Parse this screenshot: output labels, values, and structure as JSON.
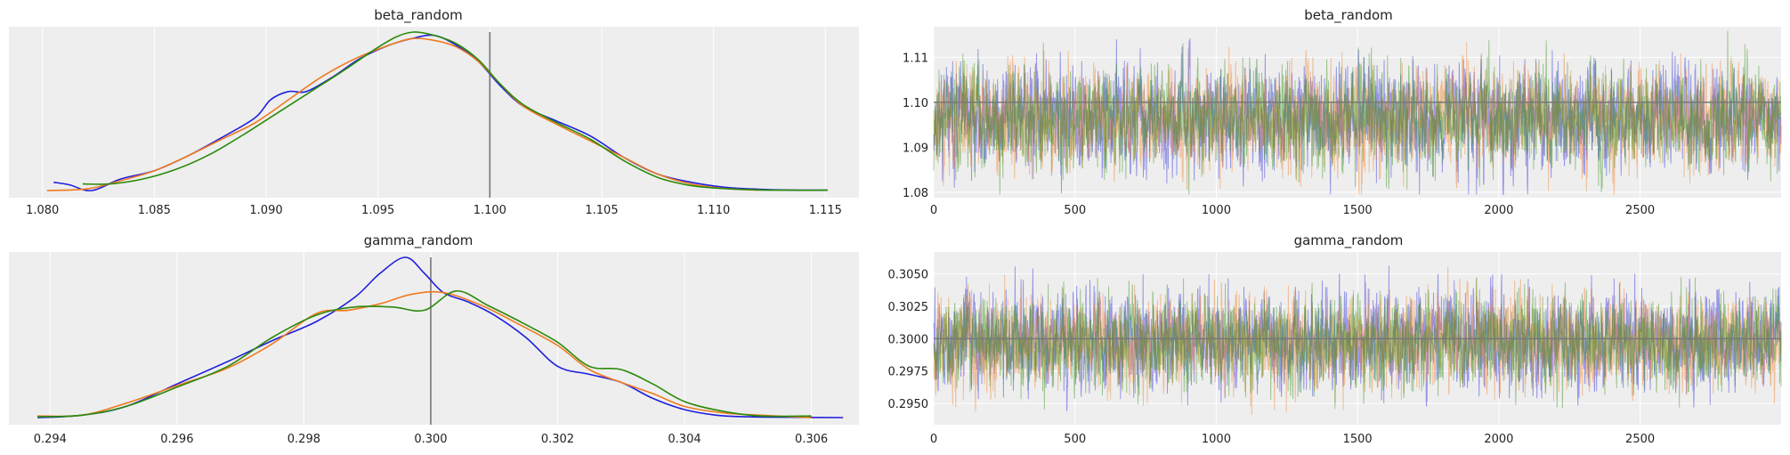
{
  "colors": {
    "panel_bg": "#eeeeee",
    "grid": "#ffffff",
    "reference_line": "#777777",
    "chain_1": "#1f1fdc",
    "chain_2": "#f07a20",
    "chain_3": "#2a8a0a"
  },
  "chart_data": [
    {
      "type": "line",
      "kind": "density",
      "title": "beta_random",
      "xlim": [
        1.0785,
        1.1165
      ],
      "xticks": [
        1.08,
        1.085,
        1.09,
        1.095,
        1.1,
        1.105,
        1.11,
        1.115
      ],
      "xtick_labels": [
        "1.080",
        "1.085",
        "1.090",
        "1.095",
        "1.100",
        "1.105",
        "1.110",
        "1.115"
      ],
      "reference_x": 1.1,
      "grid": "vertical",
      "series": [
        {
          "color": "#1f1fdc",
          "x": [
            1.0805,
            1.0812,
            1.0822,
            1.0835,
            1.085,
            1.0865,
            1.088,
            1.0895,
            1.0902,
            1.091,
            1.0918,
            1.093,
            1.0942,
            1.0955,
            1.0965,
            1.0975,
            1.0985,
            1.0995,
            1.1005,
            1.1015,
            1.103,
            1.1045,
            1.106,
            1.1075,
            1.109,
            1.1105,
            1.112,
            1.1135,
            1.1151
          ],
          "y": [
            0.05,
            0.035,
            0.0,
            0.07,
            0.12,
            0.21,
            0.32,
            0.44,
            0.55,
            0.6,
            0.6,
            0.69,
            0.8,
            0.88,
            0.92,
            0.94,
            0.88,
            0.78,
            0.63,
            0.51,
            0.42,
            0.33,
            0.2,
            0.1,
            0.05,
            0.02,
            0.008,
            0.003,
            0.002
          ]
        },
        {
          "color": "#f07a20",
          "x": [
            1.0802,
            1.082,
            1.0835,
            1.085,
            1.0865,
            1.088,
            1.0895,
            1.091,
            1.0925,
            1.094,
            1.0955,
            1.0965,
            1.0975,
            1.0985,
            1.0995,
            1.1005,
            1.1015,
            1.103,
            1.1045,
            1.106,
            1.1075,
            1.109,
            1.1105,
            1.112
          ],
          "y": [
            0.0,
            0.01,
            0.06,
            0.12,
            0.21,
            0.31,
            0.41,
            0.55,
            0.69,
            0.8,
            0.88,
            0.92,
            0.91,
            0.87,
            0.78,
            0.64,
            0.51,
            0.4,
            0.3,
            0.2,
            0.1,
            0.04,
            0.013,
            0.002
          ]
        },
        {
          "color": "#2a8a0a",
          "x": [
            1.0818,
            1.083,
            1.0845,
            1.086,
            1.0875,
            1.089,
            1.0905,
            1.092,
            1.0935,
            1.0948,
            1.0958,
            1.0966,
            1.0975,
            1.0985,
            1.0995,
            1.1005,
            1.1015,
            1.103,
            1.1045,
            1.106,
            1.1075,
            1.109,
            1.1105,
            1.112,
            1.1135,
            1.1151
          ],
          "y": [
            0.04,
            0.04,
            0.07,
            0.13,
            0.22,
            0.34,
            0.47,
            0.6,
            0.73,
            0.85,
            0.93,
            0.96,
            0.94,
            0.89,
            0.79,
            0.64,
            0.52,
            0.41,
            0.31,
            0.18,
            0.08,
            0.03,
            0.012,
            0.004,
            0.002,
            0.002
          ]
        }
      ]
    },
    {
      "type": "line",
      "kind": "trace",
      "title": "beta_random",
      "xlim": [
        0,
        2999
      ],
      "ylim": [
        1.0788,
        1.1168
      ],
      "xticks": [
        0,
        500,
        1000,
        1500,
        2000,
        2500
      ],
      "xtick_labels": [
        "0",
        "500",
        "1000",
        "1500",
        "2000",
        "2500"
      ],
      "yticks": [
        1.08,
        1.09,
        1.1,
        1.11
      ],
      "ytick_labels": [
        "1.08",
        "1.09",
        "1.10",
        "1.11"
      ],
      "reference_y": 1.1,
      "grid": "both",
      "n_draws": 3000,
      "series": [
        {
          "color": "#1f1fdc",
          "mean": 1.0965,
          "sd": 0.0055,
          "seed": 11
        },
        {
          "color": "#f07a20",
          "mean": 1.0965,
          "sd": 0.0055,
          "seed": 23
        },
        {
          "color": "#2a8a0a",
          "mean": 1.0965,
          "sd": 0.0055,
          "seed": 37
        }
      ]
    },
    {
      "type": "line",
      "kind": "density",
      "title": "gamma_random",
      "xlim": [
        0.29335,
        0.30675
      ],
      "xticks": [
        0.294,
        0.296,
        0.298,
        0.3,
        0.302,
        0.304,
        0.306
      ],
      "xtick_labels": [
        "0.294",
        "0.296",
        "0.298",
        "0.300",
        "0.302",
        "0.304",
        "0.306"
      ],
      "reference_x": 0.3,
      "grid": "vertical",
      "series": [
        {
          "color": "#1f1fdc",
          "x": [
            0.2938,
            0.2945,
            0.2952,
            0.296,
            0.2968,
            0.2975,
            0.2982,
            0.2988,
            0.2992,
            0.2996,
            0.2999,
            0.3002,
            0.3006,
            0.301,
            0.3015,
            0.302,
            0.3025,
            0.303,
            0.3035,
            0.304,
            0.3045,
            0.305,
            0.3057,
            0.3065
          ],
          "y": [
            0.0,
            0.015,
            0.07,
            0.21,
            0.35,
            0.48,
            0.6,
            0.75,
            0.9,
            1.0,
            0.9,
            0.78,
            0.72,
            0.64,
            0.5,
            0.32,
            0.27,
            0.22,
            0.12,
            0.05,
            0.015,
            0.005,
            0.002,
            0.0
          ]
        },
        {
          "color": "#f07a20",
          "x": [
            0.2938,
            0.2945,
            0.2952,
            0.296,
            0.2968,
            0.2975,
            0.2982,
            0.2987,
            0.2992,
            0.2997,
            0.3002,
            0.3008,
            0.3014,
            0.302,
            0.3025,
            0.303,
            0.3035,
            0.304,
            0.3046,
            0.3052,
            0.306
          ],
          "y": [
            0.01,
            0.015,
            0.09,
            0.2,
            0.31,
            0.46,
            0.65,
            0.67,
            0.71,
            0.77,
            0.78,
            0.7,
            0.58,
            0.45,
            0.3,
            0.22,
            0.15,
            0.07,
            0.03,
            0.015,
            0.0
          ]
        },
        {
          "color": "#2a8a0a",
          "x": [
            0.2938,
            0.2945,
            0.2952,
            0.296,
            0.2968,
            0.2975,
            0.2982,
            0.2988,
            0.2994,
            0.2999,
            0.3004,
            0.3009,
            0.3015,
            0.302,
            0.3025,
            0.303,
            0.3035,
            0.304,
            0.3046,
            0.3052,
            0.306
          ],
          "y": [
            0.005,
            0.015,
            0.07,
            0.19,
            0.32,
            0.5,
            0.64,
            0.69,
            0.69,
            0.67,
            0.79,
            0.7,
            0.58,
            0.47,
            0.32,
            0.3,
            0.21,
            0.1,
            0.04,
            0.01,
            0.01
          ]
        }
      ]
    },
    {
      "type": "line",
      "kind": "trace",
      "title": "gamma_random",
      "xlim": [
        0,
        2999
      ],
      "ylim": [
        0.29335,
        0.3067
      ],
      "xticks": [
        0,
        500,
        1000,
        1500,
        2000,
        2500
      ],
      "xtick_labels": [
        "0",
        "500",
        "1000",
        "1500",
        "2000",
        "2500"
      ],
      "yticks": [
        0.295,
        0.2975,
        0.3,
        0.3025,
        0.305
      ],
      "ytick_labels": [
        "0.2950",
        "0.2975",
        "0.3000",
        "0.3025",
        "0.3050"
      ],
      "reference_y": 0.3,
      "grid": "both",
      "n_draws": 3000,
      "series": [
        {
          "color": "#1f1fdc",
          "mean": 0.2998,
          "sd": 0.0018,
          "seed": 51
        },
        {
          "color": "#f07a20",
          "mean": 0.2998,
          "sd": 0.0018,
          "seed": 67
        },
        {
          "color": "#2a8a0a",
          "mean": 0.2998,
          "sd": 0.0018,
          "seed": 79
        }
      ]
    }
  ]
}
